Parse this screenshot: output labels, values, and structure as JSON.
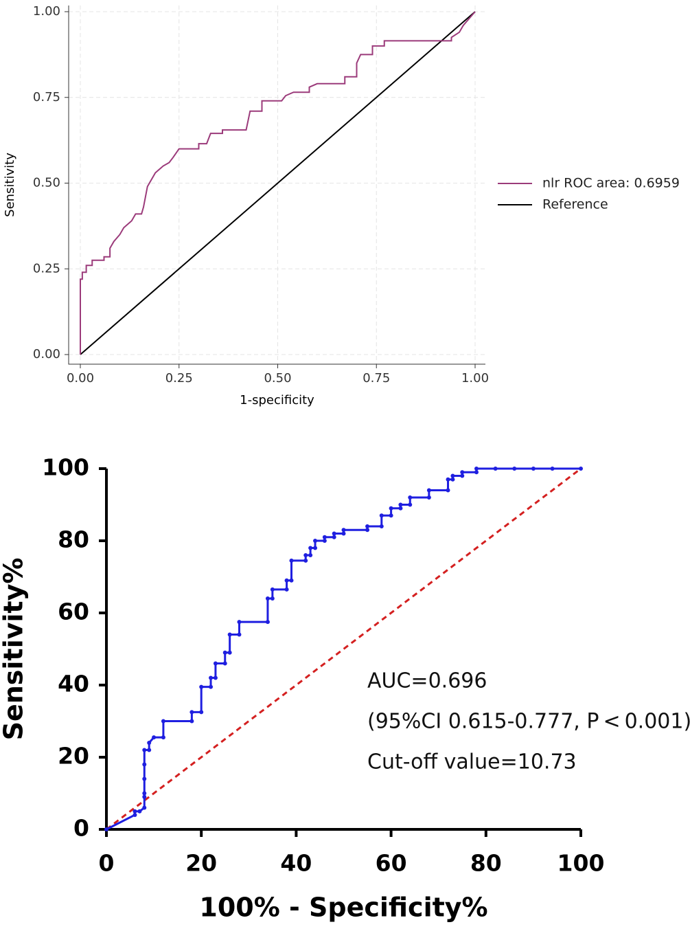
{
  "chart_data": [
    {
      "type": "line",
      "xlabel": "1-specificity",
      "ylabel": "Sensitivity",
      "xlim": [
        0,
        1
      ],
      "ylim": [
        0,
        1
      ],
      "xticks": [
        {
          "value": 0,
          "label": "0.00"
        },
        {
          "value": 0.25,
          "label": "0.25"
        },
        {
          "value": 0.5,
          "label": "0.50"
        },
        {
          "value": 0.75,
          "label": "0.75"
        },
        {
          "value": 1,
          "label": "1.00"
        }
      ],
      "yticks": [
        {
          "value": 0,
          "label": "0.00"
        },
        {
          "value": 0.25,
          "label": "0.25"
        },
        {
          "value": 0.5,
          "label": "0.50"
        },
        {
          "value": 0.75,
          "label": "0.75"
        },
        {
          "value": 1,
          "label": "1.00"
        }
      ],
      "grid": true,
      "legend": "right",
      "series": [
        {
          "name": "nlr ROC area: 0.6959",
          "color": "#9b3a7a",
          "x": [
            0,
            0,
            0.005,
            0.005,
            0.015,
            0.015,
            0.03,
            0.03,
            0.06,
            0.06,
            0.075,
            0.075,
            0.085,
            0.1,
            0.11,
            0.12,
            0.13,
            0.14,
            0.155,
            0.16,
            0.165,
            0.17,
            0.18,
            0.19,
            0.2,
            0.21,
            0.225,
            0.235,
            0.25,
            0.3,
            0.3,
            0.32,
            0.33,
            0.36,
            0.36,
            0.42,
            0.43,
            0.46,
            0.46,
            0.51,
            0.52,
            0.54,
            0.58,
            0.58,
            0.6,
            0.67,
            0.67,
            0.7,
            0.7,
            0.71,
            0.74,
            0.74,
            0.77,
            0.77,
            0.94,
            0.94,
            0.96,
            0.97,
            1
          ],
          "values": [
            0,
            0.22,
            0.22,
            0.24,
            0.24,
            0.26,
            0.26,
            0.275,
            0.275,
            0.285,
            0.285,
            0.31,
            0.33,
            0.35,
            0.37,
            0.38,
            0.39,
            0.41,
            0.41,
            0.43,
            0.46,
            0.49,
            0.51,
            0.53,
            0.54,
            0.55,
            0.56,
            0.575,
            0.6,
            0.6,
            0.615,
            0.615,
            0.645,
            0.645,
            0.655,
            0.655,
            0.71,
            0.71,
            0.74,
            0.74,
            0.755,
            0.765,
            0.765,
            0.78,
            0.79,
            0.79,
            0.81,
            0.81,
            0.85,
            0.875,
            0.875,
            0.9,
            0.9,
            0.915,
            0.915,
            0.925,
            0.94,
            0.96,
            1
          ]
        },
        {
          "name": "Reference",
          "color": "#000000",
          "x": [
            0,
            1
          ],
          "values": [
            0,
            1
          ]
        }
      ]
    },
    {
      "type": "line",
      "xlabel": "100% - Specificity%",
      "ylabel": "Sensitivity%",
      "xlim": [
        0,
        100
      ],
      "ylim": [
        0,
        100
      ],
      "xticks": [
        0,
        20,
        40,
        60,
        80,
        100
      ],
      "yticks": [
        0,
        20,
        40,
        60,
        80,
        100
      ],
      "grid": false,
      "annotations": [
        "AUC=0.696",
        "(95%CI 0.615-0.777, P < 0.001)",
        "Cut-off value=10.73"
      ],
      "series": [
        {
          "color": "#1f1fe0",
          "markers": true,
          "x": [
            0,
            6,
            6,
            7,
            8,
            8,
            8,
            8,
            8,
            8,
            9,
            9,
            10,
            12,
            12,
            18,
            18,
            20,
            20,
            22,
            22,
            23,
            23,
            25,
            25,
            26,
            26,
            28,
            28,
            34,
            34,
            35,
            35,
            38,
            38,
            39,
            39,
            42,
            42,
            43,
            43,
            44,
            44,
            46,
            46,
            48,
            48,
            50,
            50,
            55,
            55,
            58,
            58,
            60,
            60,
            62,
            62,
            64,
            64,
            68,
            68,
            72,
            72,
            73,
            73,
            75,
            75,
            78,
            78,
            82,
            86,
            90,
            94,
            100
          ],
          "values": [
            0,
            4,
            5,
            5,
            6,
            9,
            10,
            14,
            18,
            22,
            22,
            24,
            25.5,
            25.5,
            30,
            30,
            32.5,
            32.5,
            39.5,
            39.5,
            42,
            42,
            46,
            46,
            49,
            49,
            54,
            54,
            57.5,
            57.5,
            64,
            64,
            66.5,
            66.5,
            69,
            69,
            74.5,
            74.5,
            76,
            76,
            78,
            78,
            80,
            80,
            81,
            81,
            82,
            82,
            83,
            83,
            84,
            84,
            87,
            87,
            89,
            89,
            90,
            90,
            92,
            92,
            94,
            94,
            97,
            97,
            98,
            98,
            99,
            99,
            100,
            100,
            100,
            100,
            100,
            100
          ]
        },
        {
          "color": "#d42020",
          "dashed": true,
          "x": [
            0,
            100
          ],
          "values": [
            0,
            100
          ]
        }
      ]
    }
  ]
}
